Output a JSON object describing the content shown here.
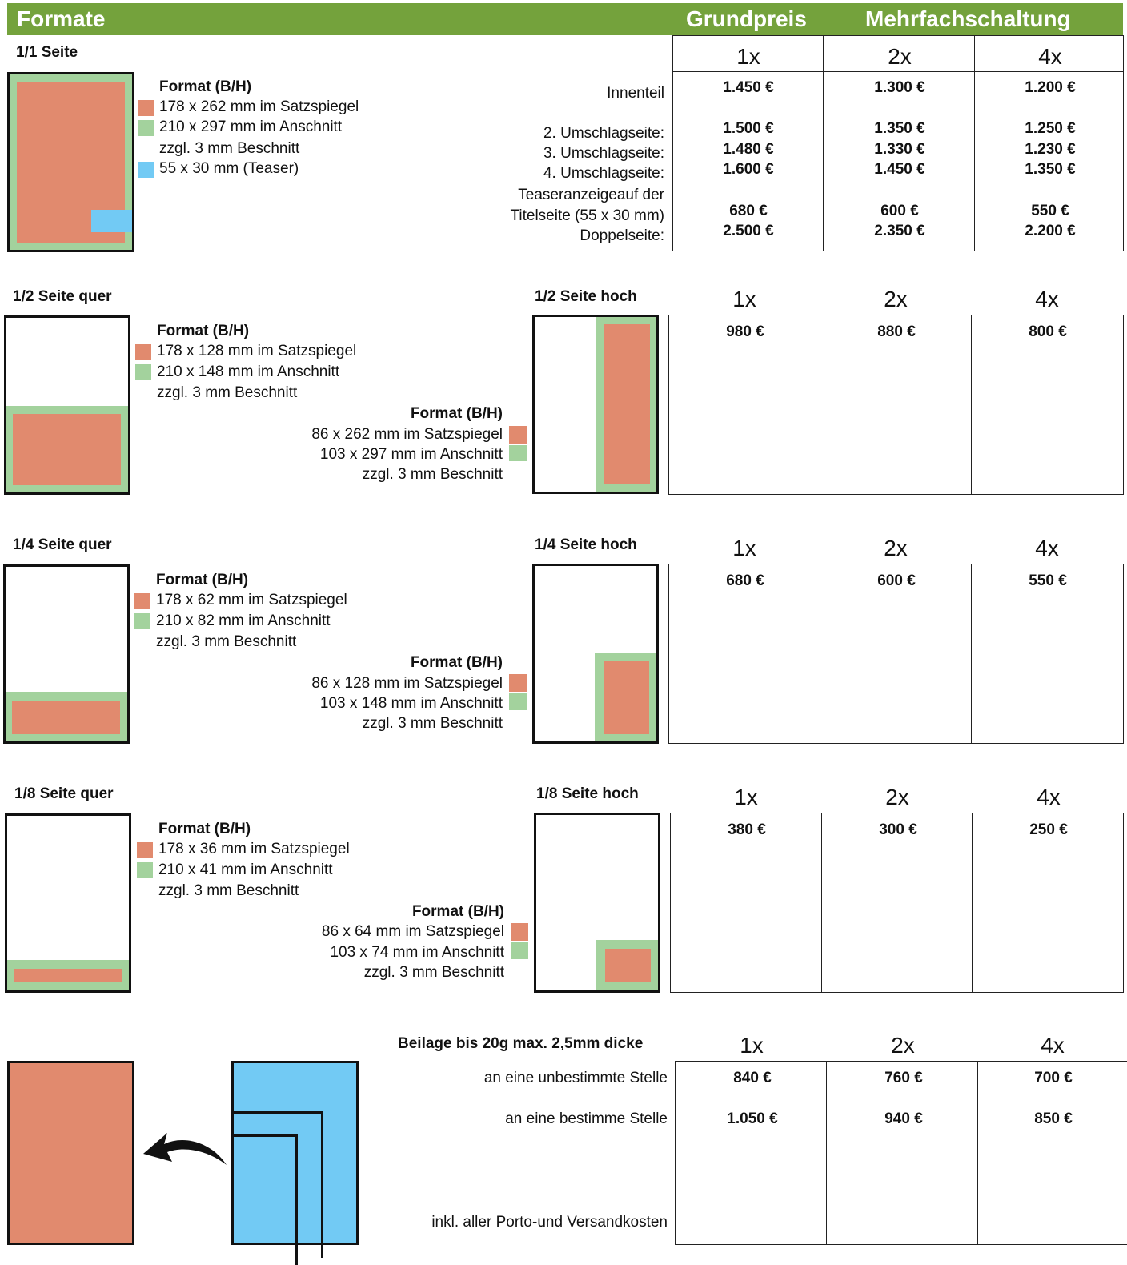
{
  "header": {
    "formate": "Formate",
    "grundpreis": "Grundpreis",
    "mehrfach": "Mehrfachschaltung"
  },
  "colors": {
    "header_green": "#74a23c",
    "satzspiegel": "#e18a6e",
    "anschnitt": "#a3d29d",
    "teaser": "#72caf4"
  },
  "cols": [
    "1x",
    "2x",
    "4x"
  ],
  "format_label": "Format (B/H)",
  "beschnitt": "zzgl. 3 mm Beschnitt",
  "s1": {
    "title": "1/1 Seite",
    "satz": "178 x 262 mm im Satzspiegel",
    "ansch": "210 x 297 mm im Anschnitt",
    "teaser": "55 x 30 mm (Teaser)",
    "rows": [
      {
        "label": "Innenteil",
        "p": [
          "1.450 €",
          "1.300 €",
          "1.200 €"
        ]
      },
      {
        "label": "2. Umschlagseite:",
        "p": [
          "1.500 €",
          "1.350 €",
          "1.250 €"
        ]
      },
      {
        "label": "3. Umschlagseite:",
        "p": [
          "1.480 €",
          "1.330 €",
          "1.230 €"
        ]
      },
      {
        "label": "4. Umschlagseite:",
        "p": [
          "1.600 €",
          "1.450 €",
          "1.350 €"
        ]
      },
      {
        "label": "Teaseranzeigeauf der",
        "p": []
      },
      {
        "label": "Titelseite (55 x 30 mm)",
        "p": [
          "680 €",
          "600 €",
          "550 €"
        ]
      },
      {
        "label": "Doppelseite:",
        "p": [
          "2.500 €",
          "2.350 €",
          "2.200 €"
        ]
      }
    ]
  },
  "s2": {
    "title_q": "1/2 Seite quer",
    "title_h": "1/2 Seite hoch",
    "q_satz": "178 x 128 mm im Satzspiegel",
    "q_ansch": "210 x 148 mm im Anschnitt",
    "h_satz": "86 x 262 mm im Satzspiegel",
    "h_ansch": "103 x 297 mm im Anschnitt",
    "p": [
      "980 €",
      "880 €",
      "800 €"
    ]
  },
  "s4": {
    "title_q": "1/4 Seite quer",
    "title_h": "1/4 Seite hoch",
    "q_satz": "178 x 62 mm im Satzspiegel",
    "q_ansch": "210 x 82 mm im Anschnitt",
    "h_satz": "86 x 128 mm im Satzspiegel",
    "h_ansch": "103 x 148 mm im Anschnitt",
    "p": [
      "680 €",
      "600 €",
      "550 €"
    ]
  },
  "s8": {
    "title_q": "1/8 Seite quer",
    "title_h": "1/8 Seite hoch",
    "q_satz": "178 x 36 mm im Satzspiegel",
    "q_ansch": "210 x 41 mm im Anschnitt",
    "h_satz": "86 x 64 mm im Satzspiegel",
    "h_ansch": "103 x 74 mm im Anschnitt",
    "p": [
      "380 €",
      "300 €",
      "250 €"
    ]
  },
  "beilage": {
    "title": "Beilage bis 20g max. 2,5mm dicke",
    "row1": "an eine unbestimmte Stelle",
    "p1": [
      "840 €",
      "760 €",
      "700 €"
    ],
    "row2": "an eine bestimme Stelle",
    "p2": [
      "1.050 €",
      "940 €",
      "850 €"
    ],
    "note": "inkl. aller Porto-und Versandkosten"
  }
}
